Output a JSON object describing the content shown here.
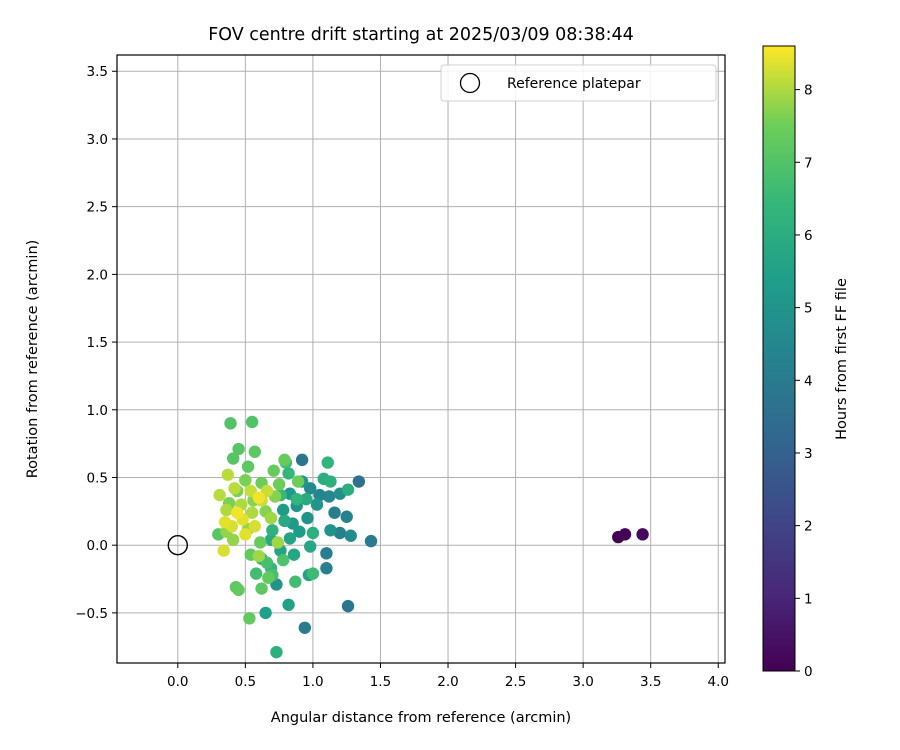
{
  "chart_data": {
    "type": "scatter",
    "title": "FOV centre drift starting at 2025/03/09 08:38:44",
    "xlabel": "Angular distance from reference (arcmin)",
    "ylabel": "Rotation from reference (arcmin)",
    "xlim": [
      -0.45,
      4.05
    ],
    "ylim": [
      -0.87,
      3.62
    ],
    "xticks": [
      0.0,
      0.5,
      1.0,
      1.5,
      2.0,
      2.5,
      3.0,
      3.5,
      4.0
    ],
    "xtick_labels": [
      "0.0",
      "0.5",
      "1.0",
      "1.5",
      "2.0",
      "2.5",
      "3.0",
      "3.5",
      "4.0"
    ],
    "yticks": [
      -0.5,
      0.0,
      0.5,
      1.0,
      1.5,
      2.0,
      2.5,
      3.0,
      3.5
    ],
    "ytick_labels": [
      "−0.5",
      "0.0",
      "0.5",
      "1.0",
      "1.5",
      "2.0",
      "2.5",
      "3.0",
      "3.5"
    ],
    "grid": true,
    "legend": {
      "placement": "top-right",
      "entries": [
        "Reference platepar"
      ]
    },
    "reference_point": {
      "x": 0.0,
      "y": 0.0,
      "label": "Reference platepar"
    },
    "colorbar": {
      "label": "Hours from first FF file",
      "colormap": "viridis",
      "range": [
        0,
        8.6
      ],
      "ticks": [
        0,
        1,
        2,
        3,
        4,
        5,
        6,
        7,
        8
      ],
      "tick_labels": [
        "0",
        "1",
        "2",
        "3",
        "4",
        "5",
        "6",
        "7",
        "8"
      ]
    },
    "points": [
      {
        "x": 3.26,
        "y": 0.06,
        "c": 0.0
      },
      {
        "x": 3.31,
        "y": 0.08,
        "c": 0.1
      },
      {
        "x": 3.44,
        "y": 0.08,
        "c": 0.2
      },
      {
        "x": 1.26,
        "y": -0.45,
        "c": 3.8
      },
      {
        "x": 0.94,
        "y": -0.61,
        "c": 4.0
      },
      {
        "x": 1.34,
        "y": 0.47,
        "c": 3.6
      },
      {
        "x": 0.92,
        "y": 0.63,
        "c": 3.8
      },
      {
        "x": 1.43,
        "y": 0.03,
        "c": 4.0
      },
      {
        "x": 1.2,
        "y": 0.09,
        "c": 4.2
      },
      {
        "x": 1.1,
        "y": -0.06,
        "c": 4.1
      },
      {
        "x": 1.1,
        "y": -0.17,
        "c": 4.2
      },
      {
        "x": 1.25,
        "y": 0.21,
        "c": 4.3
      },
      {
        "x": 1.16,
        "y": 0.24,
        "c": 4.1
      },
      {
        "x": 1.05,
        "y": 0.37,
        "c": 4.4
      },
      {
        "x": 1.12,
        "y": 0.36,
        "c": 4.5
      },
      {
        "x": 0.98,
        "y": 0.42,
        "c": 4.6
      },
      {
        "x": 1.2,
        "y": 0.38,
        "c": 4.8
      },
      {
        "x": 1.28,
        "y": 0.07,
        "c": 4.7
      },
      {
        "x": 1.13,
        "y": 0.11,
        "c": 4.9
      },
      {
        "x": 0.96,
        "y": 0.2,
        "c": 4.9
      },
      {
        "x": 1.03,
        "y": 0.3,
        "c": 5.0
      },
      {
        "x": 0.88,
        "y": 0.29,
        "c": 5.0
      },
      {
        "x": 0.83,
        "y": 0.38,
        "c": 5.2
      },
      {
        "x": 0.92,
        "y": 0.47,
        "c": 5.1
      },
      {
        "x": 0.85,
        "y": 0.16,
        "c": 5.2
      },
      {
        "x": 0.78,
        "y": 0.26,
        "c": 5.3
      },
      {
        "x": 0.9,
        "y": 0.1,
        "c": 5.3
      },
      {
        "x": 0.73,
        "y": -0.29,
        "c": 4.9
      },
      {
        "x": 0.65,
        "y": -0.5,
        "c": 5.4
      },
      {
        "x": 0.82,
        "y": -0.44,
        "c": 5.5
      },
      {
        "x": 0.97,
        "y": -0.22,
        "c": 5.5
      },
      {
        "x": 0.83,
        "y": 0.05,
        "c": 5.6
      },
      {
        "x": 0.76,
        "y": -0.04,
        "c": 5.6
      },
      {
        "x": 0.98,
        "y": -0.01,
        "c": 5.7
      },
      {
        "x": 0.86,
        "y": -0.07,
        "c": 5.7
      },
      {
        "x": 0.69,
        "y": 0.04,
        "c": 5.8
      },
      {
        "x": 0.79,
        "y": 0.18,
        "c": 5.8
      },
      {
        "x": 0.95,
        "y": 0.34,
        "c": 5.9
      },
      {
        "x": 1.08,
        "y": 0.49,
        "c": 6.0
      },
      {
        "x": 1.26,
        "y": 0.41,
        "c": 6.0
      },
      {
        "x": 1.13,
        "y": 0.47,
        "c": 6.1
      },
      {
        "x": 1.0,
        "y": 0.09,
        "c": 6.1
      },
      {
        "x": 0.73,
        "y": -0.79,
        "c": 6.1
      },
      {
        "x": 0.62,
        "y": -0.1,
        "c": 6.2
      },
      {
        "x": 0.7,
        "y": 0.11,
        "c": 6.2
      },
      {
        "x": 0.88,
        "y": 0.34,
        "c": 6.3
      },
      {
        "x": 1.11,
        "y": 0.61,
        "c": 6.3
      },
      {
        "x": 0.82,
        "y": 0.53,
        "c": 6.4
      },
      {
        "x": 0.69,
        "y": -0.17,
        "c": 6.4
      },
      {
        "x": 0.76,
        "y": 0.37,
        "c": 6.5
      },
      {
        "x": 0.8,
        "y": 0.61,
        "c": 6.6
      },
      {
        "x": 1.0,
        "y": -0.21,
        "c": 6.6
      },
      {
        "x": 0.87,
        "y": -0.27,
        "c": 6.7
      },
      {
        "x": 0.58,
        "y": -0.21,
        "c": 6.7
      },
      {
        "x": 0.66,
        "y": -0.13,
        "c": 6.8
      },
      {
        "x": 0.7,
        "y": -0.22,
        "c": 6.8
      },
      {
        "x": 0.78,
        "y": -0.11,
        "c": 6.9
      },
      {
        "x": 0.55,
        "y": 0.91,
        "c": 7.0
      },
      {
        "x": 0.39,
        "y": 0.9,
        "c": 7.0
      },
      {
        "x": 0.45,
        "y": 0.71,
        "c": 7.1
      },
      {
        "x": 0.41,
        "y": 0.64,
        "c": 7.1
      },
      {
        "x": 0.57,
        "y": 0.69,
        "c": 7.2
      },
      {
        "x": 0.52,
        "y": 0.58,
        "c": 7.2
      },
      {
        "x": 0.3,
        "y": 0.08,
        "c": 7.1
      },
      {
        "x": 0.43,
        "y": -0.31,
        "c": 7.2
      },
      {
        "x": 0.45,
        "y": -0.33,
        "c": 7.3
      },
      {
        "x": 0.53,
        "y": -0.54,
        "c": 7.3
      },
      {
        "x": 0.62,
        "y": -0.32,
        "c": 7.2
      },
      {
        "x": 0.67,
        "y": -0.24,
        "c": 7.3
      },
      {
        "x": 0.54,
        "y": -0.07,
        "c": 7.3
      },
      {
        "x": 0.61,
        "y": 0.02,
        "c": 7.4
      },
      {
        "x": 0.71,
        "y": 0.55,
        "c": 7.4
      },
      {
        "x": 0.79,
        "y": 0.63,
        "c": 7.4
      },
      {
        "x": 0.89,
        "y": 0.47,
        "c": 7.5
      },
      {
        "x": 0.75,
        "y": 0.45,
        "c": 7.5
      },
      {
        "x": 0.62,
        "y": 0.46,
        "c": 7.5
      },
      {
        "x": 0.5,
        "y": 0.48,
        "c": 7.6
      },
      {
        "x": 0.44,
        "y": 0.4,
        "c": 7.6
      },
      {
        "x": 0.38,
        "y": 0.31,
        "c": 7.6
      },
      {
        "x": 0.56,
        "y": 0.33,
        "c": 7.7
      },
      {
        "x": 0.65,
        "y": 0.25,
        "c": 7.7
      },
      {
        "x": 0.72,
        "y": 0.36,
        "c": 7.7
      },
      {
        "x": 0.36,
        "y": 0.1,
        "c": 7.8
      },
      {
        "x": 0.41,
        "y": 0.04,
        "c": 7.8
      },
      {
        "x": 0.52,
        "y": 0.12,
        "c": 7.8
      },
      {
        "x": 0.6,
        "y": -0.08,
        "c": 7.9
      },
      {
        "x": 0.69,
        "y": 0.2,
        "c": 7.9
      },
      {
        "x": 0.74,
        "y": 0.02,
        "c": 7.9
      },
      {
        "x": 0.55,
        "y": 0.24,
        "c": 8.0
      },
      {
        "x": 0.47,
        "y": 0.3,
        "c": 8.0
      },
      {
        "x": 0.36,
        "y": 0.26,
        "c": 8.0
      },
      {
        "x": 0.31,
        "y": 0.37,
        "c": 8.1
      },
      {
        "x": 0.37,
        "y": 0.52,
        "c": 8.1
      },
      {
        "x": 0.42,
        "y": 0.42,
        "c": 8.1
      },
      {
        "x": 0.54,
        "y": 0.4,
        "c": 8.2
      },
      {
        "x": 0.62,
        "y": 0.33,
        "c": 8.2
      },
      {
        "x": 0.66,
        "y": 0.4,
        "c": 8.2
      },
      {
        "x": 0.57,
        "y": 0.14,
        "c": 8.3
      },
      {
        "x": 0.4,
        "y": 0.14,
        "c": 8.3
      },
      {
        "x": 0.34,
        "y": -0.04,
        "c": 8.3
      },
      {
        "x": 0.5,
        "y": 0.08,
        "c": 8.4
      },
      {
        "x": 0.48,
        "y": 0.19,
        "c": 8.4
      },
      {
        "x": 0.35,
        "y": 0.17,
        "c": 8.4
      },
      {
        "x": 0.6,
        "y": 0.35,
        "c": 8.5
      },
      {
        "x": 0.44,
        "y": 0.24,
        "c": 8.5
      }
    ]
  }
}
